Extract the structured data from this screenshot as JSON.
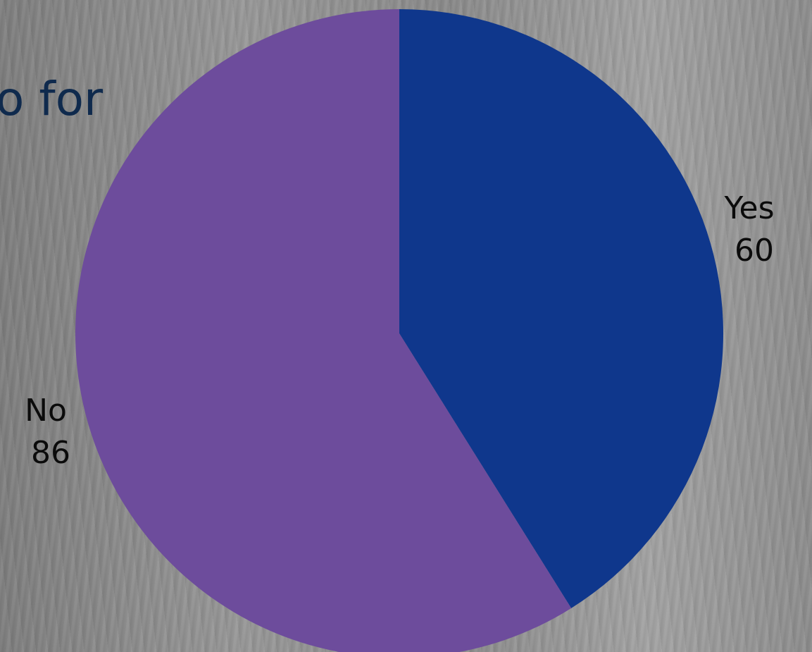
{
  "title_fragment": "o for",
  "chart_data": {
    "type": "pie",
    "title": "o for",
    "categories": [
      "Yes",
      "No"
    ],
    "values": [
      60,
      86
    ],
    "colors": [
      "#0f378c",
      "#6d4c9c"
    ],
    "start_angle_deg": 0,
    "direction": "clockwise",
    "labels": [
      {
        "category": "Yes",
        "value": "60"
      },
      {
        "category": "No",
        "value": "86"
      }
    ],
    "legend": "none"
  }
}
